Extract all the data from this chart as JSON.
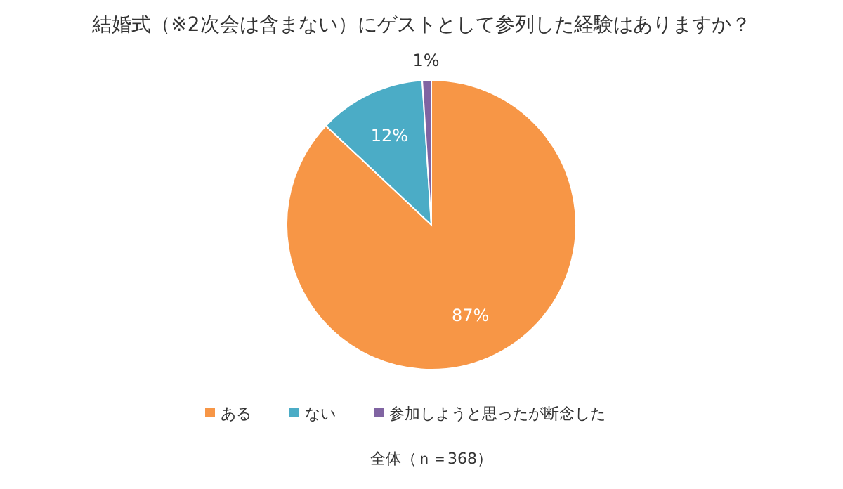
{
  "chart_data": {
    "type": "pie",
    "title": "結婚式（※2次会は含まない）にゲストとして参列した経験はありますか？",
    "categories": [
      "ある",
      "ない",
      "参加しようと思ったが断念した"
    ],
    "values": [
      87,
      12,
      1
    ],
    "colors": [
      "#f79646",
      "#4bacc6",
      "#8064a2"
    ],
    "value_labels": [
      "87%",
      "12%",
      "1%"
    ],
    "legend": "bottom",
    "annotations": [
      "全体（ｎ＝368）"
    ]
  }
}
